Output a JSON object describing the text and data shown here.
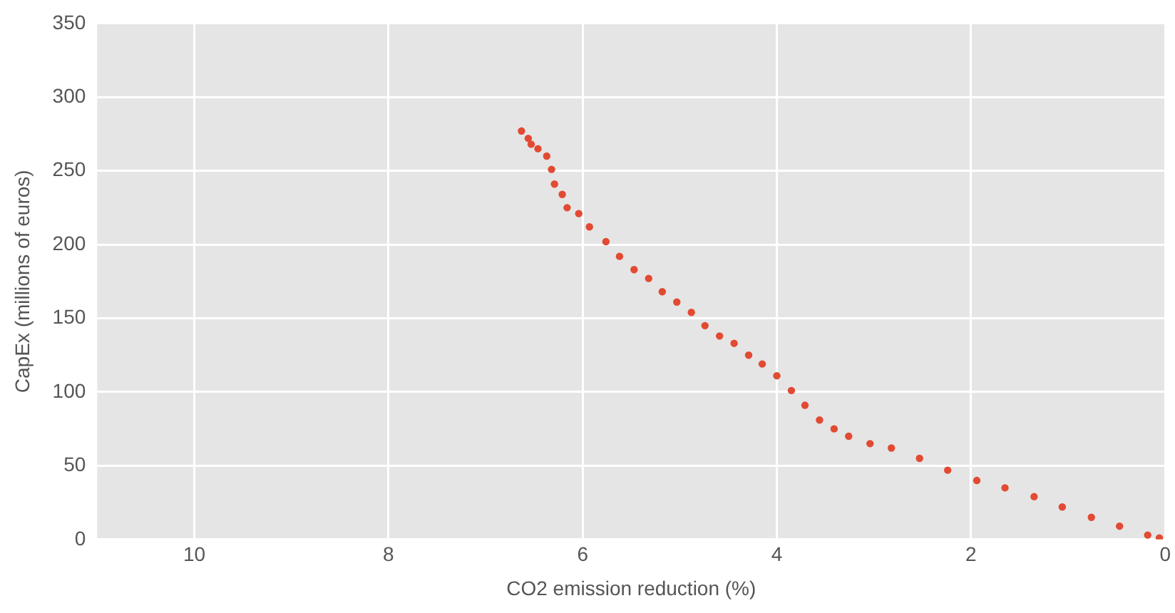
{
  "chart_data": {
    "type": "scatter",
    "xlabel": "CO2 emission reduction (%)",
    "ylabel": "CapEx (millions of euros)",
    "x": [
      6.63,
      6.56,
      6.53,
      6.46,
      6.37,
      6.32,
      6.29,
      6.21,
      6.16,
      6.04,
      5.93,
      5.76,
      5.62,
      5.47,
      5.32,
      5.18,
      5.03,
      4.88,
      4.74,
      4.59,
      4.44,
      4.29,
      4.15,
      4.0,
      3.85,
      3.71,
      3.56,
      3.41,
      3.26,
      3.04,
      2.82,
      2.53,
      2.24,
      1.94,
      1.65,
      1.35,
      1.06,
      0.76,
      0.47,
      0.18,
      0.06
    ],
    "series": [
      {
        "color": "#e24a33",
        "values": [
          277,
          272,
          268,
          265,
          260,
          251,
          241,
          234,
          225,
          221,
          212,
          202,
          192,
          183,
          177,
          168,
          161,
          154,
          145,
          138,
          133,
          125,
          119,
          111,
          101,
          91,
          81,
          75,
          70,
          65,
          62,
          55,
          47,
          40,
          35,
          29,
          22,
          15,
          9,
          3,
          1
        ]
      }
    ],
    "xlim": [
      11,
      0
    ],
    "xticks": [
      10,
      8,
      6,
      4,
      2,
      0
    ],
    "ylim": [
      0,
      350
    ],
    "yticks": [
      0,
      50,
      100,
      150,
      200,
      250,
      300,
      350
    ],
    "grid": true,
    "legend": false,
    "marker": "circle"
  }
}
